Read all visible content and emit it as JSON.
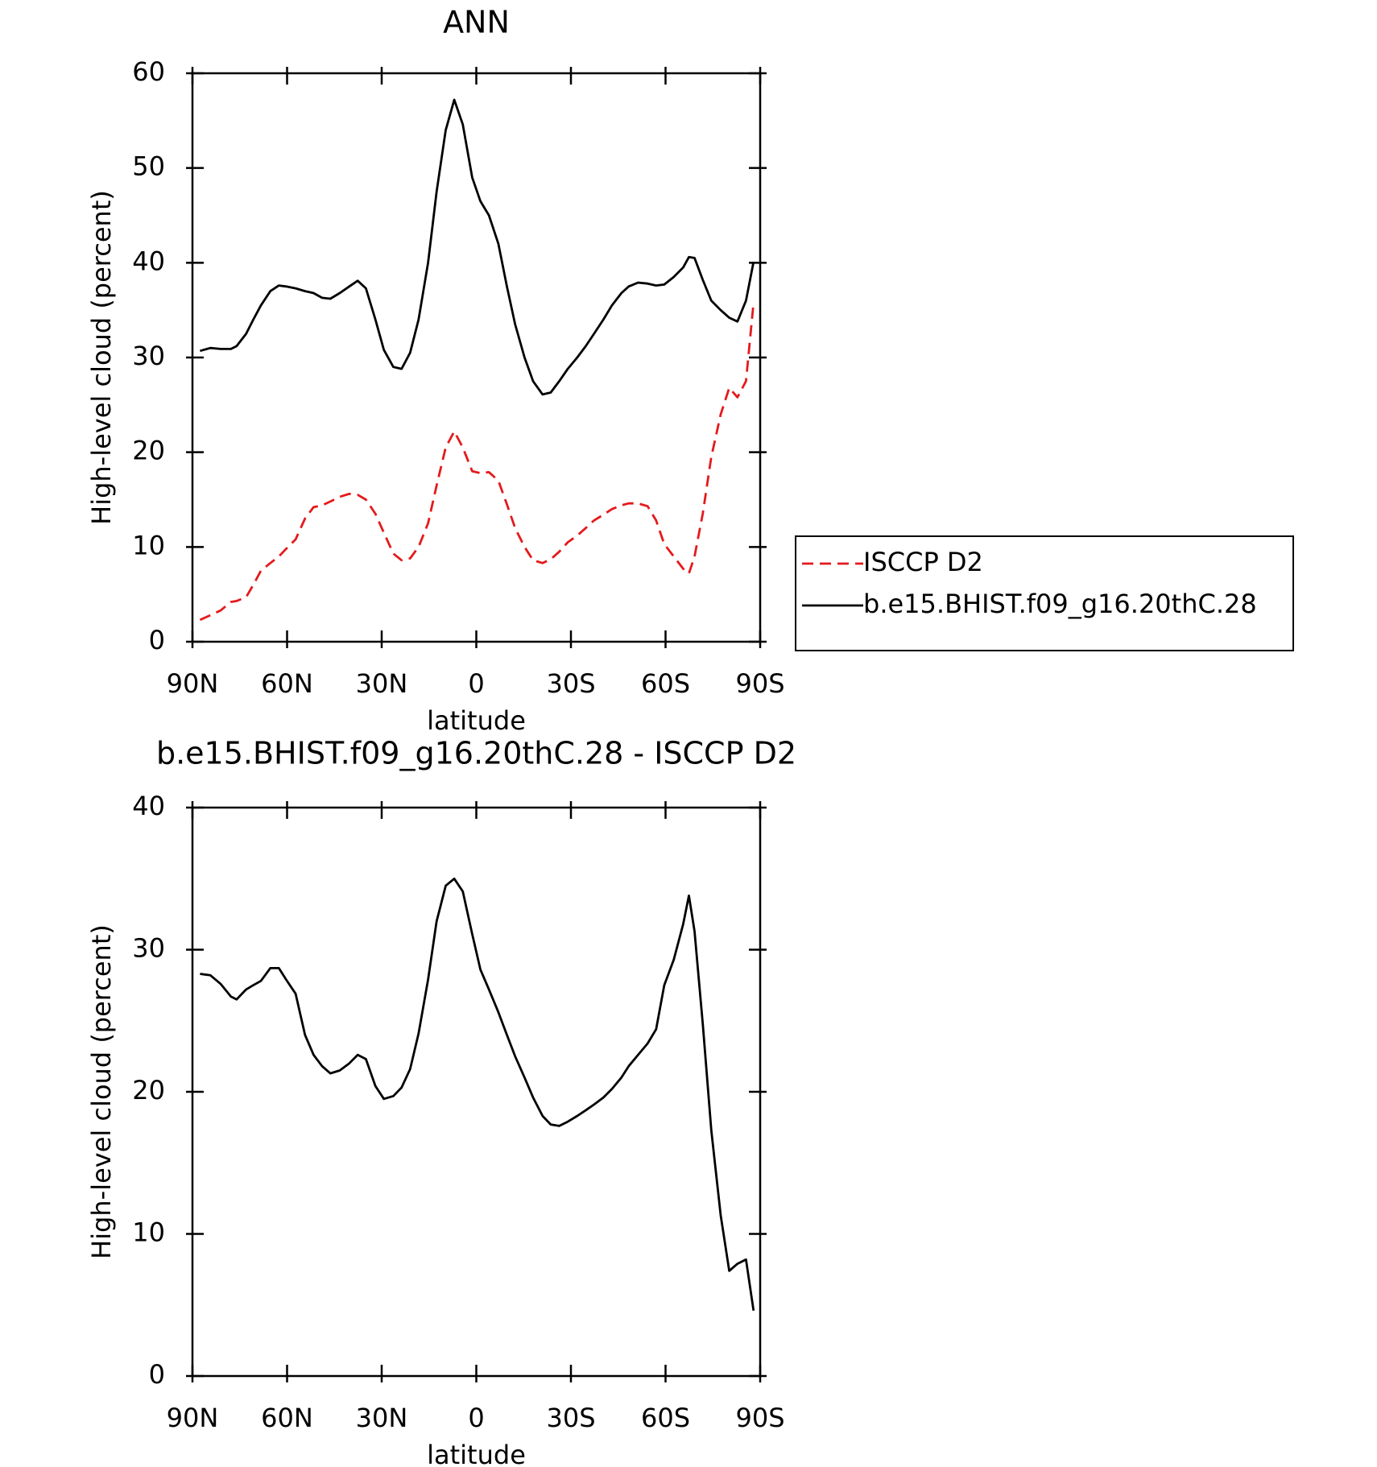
{
  "chart_data": [
    {
      "type": "line",
      "title": "ANN",
      "xlabel": "latitude",
      "ylabel": "High-level cloud (percent)",
      "x": [
        87.6,
        84.3,
        81.1,
        77.8,
        76.0,
        73.0,
        70.7,
        68.3,
        65.3,
        62.6,
        60.3,
        57.3,
        54.3,
        51.6,
        48.9,
        46.3,
        43.3,
        40.3,
        37.6,
        35.0,
        32.0,
        29.3,
        26.3,
        23.7,
        21.0,
        18.3,
        15.3,
        12.6,
        9.7,
        7.0,
        4.3,
        1.3,
        -1.3,
        -4.0,
        -7.0,
        -9.7,
        -12.3,
        -15.3,
        -18.0,
        -21.0,
        -23.6,
        -26.3,
        -29.0,
        -32.0,
        -34.7,
        -37.3,
        -40.3,
        -43.0,
        -46.0,
        -48.3,
        -51.3,
        -54.3,
        -57.0,
        -59.6,
        -62.6,
        -65.6,
        -67.4,
        -69.2,
        -71.8,
        -74.5,
        -77.5,
        -80.2,
        -82.8,
        -85.5,
        -87.9
      ],
      "series": [
        {
          "name": "ISCCP D2",
          "color": "#e41a1c",
          "dashed": true,
          "values": [
            2.3,
            2.8,
            3.3,
            4.2,
            4.3,
            4.7,
            6.0,
            7.5,
            8.3,
            9.0,
            9.8,
            10.8,
            13.0,
            14.2,
            14.4,
            14.8,
            15.3,
            15.6,
            15.5,
            15.0,
            13.5,
            11.5,
            9.3,
            8.6,
            8.8,
            10.0,
            12.5,
            16.5,
            20.5,
            22.2,
            20.5,
            18.0,
            17.8,
            17.9,
            17.0,
            14.5,
            12.0,
            10.0,
            8.6,
            8.3,
            8.7,
            9.5,
            10.5,
            11.2,
            12.0,
            12.8,
            13.4,
            14.0,
            14.4,
            14.6,
            14.6,
            14.3,
            12.8,
            10.3,
            9.0,
            7.7,
            7.2,
            9.0,
            13.5,
            19.5,
            24.0,
            26.8,
            25.8,
            27.5,
            35.8
          ]
        },
        {
          "name": "b.e15.BHIST.f09_g16.20thC.28",
          "color": "#000000",
          "dashed": false,
          "values": [
            30.7,
            31.0,
            30.9,
            30.9,
            31.2,
            32.5,
            34.0,
            35.5,
            37.0,
            37.6,
            37.5,
            37.3,
            37.0,
            36.8,
            36.3,
            36.2,
            36.8,
            37.5,
            38.1,
            37.3,
            34.0,
            30.8,
            29.0,
            28.8,
            30.5,
            34.0,
            40.0,
            47.5,
            54.0,
            57.2,
            54.6,
            49.0,
            46.5,
            45.0,
            42.0,
            37.5,
            33.5,
            30.0,
            27.5,
            26.1,
            26.3,
            27.5,
            28.8,
            30.0,
            31.2,
            32.5,
            34.0,
            35.5,
            36.8,
            37.5,
            37.9,
            37.8,
            37.6,
            37.7,
            38.5,
            39.5,
            40.6,
            40.5,
            38.2,
            36.0,
            35.0,
            34.2,
            33.8,
            36.0,
            40.1
          ]
        }
      ],
      "xlim": [
        90,
        -90
      ],
      "xticks": [
        {
          "value": 90,
          "label": "90N"
        },
        {
          "value": 60,
          "label": "60N"
        },
        {
          "value": 30,
          "label": "30N"
        },
        0,
        {
          "value": -30,
          "label": "30S"
        },
        {
          "value": -60,
          "label": "60S"
        },
        {
          "value": -90,
          "label": "90S"
        }
      ],
      "ylim": [
        0,
        60
      ],
      "yticks": [
        0,
        10,
        20,
        30,
        40,
        50,
        60
      ],
      "legend": "right"
    },
    {
      "type": "line",
      "title": "b.e15.BHIST.f09_g16.20thC.28 - ISCCP D2",
      "xlabel": "latitude",
      "ylabel": "High-level cloud (percent)",
      "x": [
        87.6,
        84.3,
        81.1,
        77.8,
        76.0,
        73.0,
        70.7,
        68.3,
        65.3,
        62.6,
        60.3,
        57.3,
        54.3,
        51.6,
        48.9,
        46.3,
        43.3,
        40.3,
        37.6,
        35.0,
        32.0,
        29.3,
        26.3,
        23.7,
        21.0,
        18.3,
        15.3,
        12.6,
        9.7,
        7.0,
        4.3,
        1.3,
        -1.3,
        -4.0,
        -7.0,
        -9.7,
        -12.3,
        -15.3,
        -18.0,
        -21.0,
        -23.6,
        -26.3,
        -29.0,
        -32.0,
        -34.7,
        -37.3,
        -40.3,
        -43.0,
        -46.0,
        -48.3,
        -51.3,
        -54.3,
        -57.0,
        -59.6,
        -62.6,
        -65.6,
        -67.4,
        -69.2,
        -71.8,
        -74.5,
        -77.5,
        -80.2,
        -82.8,
        -85.5,
        -87.9
      ],
      "series": [
        {
          "color": "#000000",
          "dashed": false,
          "values": [
            28.3,
            28.2,
            27.6,
            26.7,
            26.5,
            27.2,
            27.5,
            27.8,
            28.7,
            28.7,
            27.9,
            26.9,
            24.0,
            22.6,
            21.8,
            21.3,
            21.5,
            22.0,
            22.6,
            22.3,
            20.4,
            19.5,
            19.7,
            20.3,
            21.6,
            24.1,
            27.9,
            32.0,
            34.5,
            35.0,
            34.1,
            31.1,
            28.6,
            27.2,
            25.6,
            24.0,
            22.5,
            21.0,
            19.6,
            18.3,
            17.7,
            17.6,
            17.9,
            18.3,
            18.7,
            19.1,
            19.6,
            20.2,
            21.0,
            21.8,
            22.6,
            23.4,
            24.4,
            27.5,
            29.3,
            31.8,
            33.8,
            31.3,
            24.8,
            17.3,
            11.3,
            7.4,
            7.9,
            8.2,
            4.6
          ]
        }
      ],
      "xlim": [
        90,
        -90
      ],
      "xticks": [
        {
          "value": 90,
          "label": "90N"
        },
        {
          "value": 60,
          "label": "60N"
        },
        {
          "value": 30,
          "label": "30N"
        },
        0,
        {
          "value": -30,
          "label": "30S"
        },
        {
          "value": -60,
          "label": "60S"
        },
        {
          "value": -90,
          "label": "90S"
        }
      ],
      "ylim": [
        0,
        40
      ],
      "yticks": [
        0,
        10,
        20,
        30,
        40
      ]
    }
  ]
}
